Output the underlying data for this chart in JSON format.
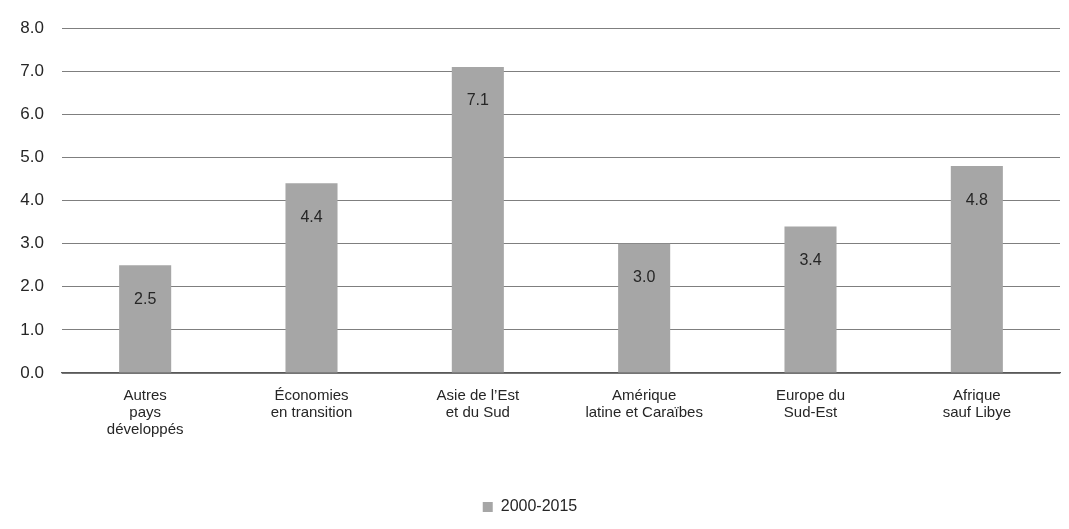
{
  "chart_data": {
    "type": "bar",
    "categories": [
      "Autres\npays\ndéveloppés",
      "Économies\nen transition",
      "Asie de l’Est\net du Sud",
      "Amérique\nlatine et Caraïbes",
      "Europe du\nSud-Est",
      "Afrique\nsauf Libye"
    ],
    "series": [
      {
        "name": "2000-2015",
        "color": "#a6a6a6",
        "values": [
          2.5,
          4.4,
          7.1,
          3.0,
          3.4,
          4.8
        ],
        "value_labels": [
          "2.5",
          "4.4",
          "7.1",
          "3.0",
          "3.4",
          "4.8"
        ]
      }
    ],
    "ylim": [
      0,
      8
    ],
    "yticks": [
      {
        "value": 0,
        "label": "0.0"
      },
      {
        "value": 1,
        "label": "1.0"
      },
      {
        "value": 2,
        "label": "2.0"
      },
      {
        "value": 3,
        "label": "3.0"
      },
      {
        "value": 4,
        "label": "4.0"
      },
      {
        "value": 5,
        "label": "5.0"
      },
      {
        "value": 6,
        "label": "6.0"
      },
      {
        "value": 7,
        "label": "7.0"
      },
      {
        "value": 8,
        "label": "8.0"
      }
    ],
    "grid": "y",
    "legend": "bottom"
  }
}
